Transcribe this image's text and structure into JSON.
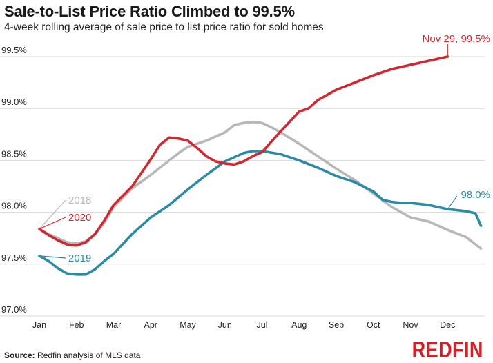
{
  "header": {
    "title": "Sale-to-List Price Ratio Climbed to 99.5%",
    "subtitle": "4-week rolling average of sale price to list price ratio for sold homes"
  },
  "footer": {
    "source_label": "Source:",
    "source_text": "Redfin analysis of MLS data",
    "brand": "REDFIN"
  },
  "colors": {
    "2018": "#b8b8b8",
    "2019": "#2a8aa8",
    "2020": "#d12830",
    "grid": "#d9d9d9",
    "text": "#1a1a1a"
  },
  "chart_data": {
    "type": "line",
    "title": "Sale-to-List Price Ratio Climbed to 99.5%",
    "subtitle": "4-week rolling average of sale price to list price ratio for sold homes",
    "xlabel": "",
    "ylabel": "",
    "x_unit": "month",
    "x_ticks": [
      "Jan",
      "Feb",
      "Mar",
      "Apr",
      "May",
      "Jun",
      "Jul",
      "Aug",
      "Sep",
      "Oct",
      "Nov",
      "Dec"
    ],
    "y_ticks": [
      "97.0%",
      "97.5%",
      "98.0%",
      "98.5%",
      "99.0%",
      "99.5%"
    ],
    "y_tick_values": [
      97.0,
      97.5,
      98.0,
      98.5,
      99.0,
      99.5
    ],
    "ylim": [
      97.0,
      99.5
    ],
    "grid": true,
    "series": [
      {
        "name": "2018",
        "color": "#b8b8b8",
        "x": [
          0.0,
          0.25,
          0.5,
          0.75,
          1.0,
          1.25,
          1.5,
          1.75,
          2.0,
          2.5,
          3.0,
          3.25,
          3.5,
          3.75,
          4.0,
          4.5,
          5.0,
          5.25,
          5.5,
          5.75,
          6.0,
          6.25,
          6.5,
          7.0,
          7.5,
          8.0,
          8.5,
          9.0,
          9.5,
          10.0,
          10.5,
          11.0,
          11.5,
          11.9
        ],
        "values": [
          97.84,
          97.79,
          97.75,
          97.71,
          97.7,
          97.72,
          97.79,
          97.9,
          98.05,
          98.23,
          98.36,
          98.43,
          98.5,
          98.57,
          98.63,
          98.69,
          98.77,
          98.84,
          98.86,
          98.87,
          98.86,
          98.82,
          98.77,
          98.66,
          98.54,
          98.42,
          98.31,
          98.18,
          98.05,
          97.95,
          97.91,
          97.83,
          97.76,
          97.65
        ]
      },
      {
        "name": "2019",
        "color": "#2a8aa8",
        "x": [
          0.0,
          0.25,
          0.5,
          0.75,
          1.0,
          1.25,
          1.5,
          1.75,
          2.0,
          2.5,
          3.0,
          3.5,
          4.0,
          4.5,
          5.0,
          5.5,
          5.75,
          6.0,
          6.5,
          7.0,
          7.5,
          8.0,
          8.5,
          9.0,
          9.25,
          9.5,
          9.75,
          10.0,
          10.25,
          10.5,
          10.75,
          11.0,
          11.25,
          11.5,
          11.75,
          11.9
        ],
        "values": [
          97.58,
          97.53,
          97.46,
          97.41,
          97.4,
          97.4,
          97.45,
          97.53,
          97.6,
          97.79,
          97.95,
          98.07,
          98.22,
          98.36,
          98.49,
          98.57,
          98.59,
          98.59,
          98.56,
          98.5,
          98.43,
          98.35,
          98.29,
          98.2,
          98.12,
          98.1,
          98.09,
          98.09,
          98.08,
          98.07,
          98.05,
          98.03,
          98.02,
          98.01,
          97.99,
          97.87
        ]
      },
      {
        "name": "2020",
        "color": "#d12830",
        "x": [
          0.0,
          0.25,
          0.5,
          0.75,
          1.0,
          1.25,
          1.5,
          1.75,
          2.0,
          2.5,
          3.0,
          3.25,
          3.5,
          3.75,
          4.0,
          4.25,
          4.5,
          4.75,
          5.0,
          5.25,
          5.5,
          5.75,
          6.0,
          6.5,
          7.0,
          7.25,
          7.5,
          8.0,
          8.5,
          9.0,
          9.5,
          10.0,
          10.5,
          11.0
        ],
        "values": [
          97.84,
          97.78,
          97.73,
          97.69,
          97.68,
          97.71,
          97.79,
          97.92,
          98.07,
          98.25,
          98.51,
          98.65,
          98.72,
          98.71,
          98.69,
          98.62,
          98.54,
          98.49,
          98.47,
          98.46,
          98.49,
          98.54,
          98.58,
          98.78,
          98.97,
          99.0,
          99.08,
          99.18,
          99.25,
          99.32,
          99.38,
          99.42,
          99.46,
          99.5
        ]
      }
    ],
    "annotations": [
      {
        "series": "2018",
        "text": "2018"
      },
      {
        "series": "2020",
        "text": "2020"
      },
      {
        "series": "2019",
        "text": "2019"
      },
      {
        "series": "2020",
        "text": "Nov 29, 99.5%"
      },
      {
        "series": "2019",
        "text": "98.0%"
      }
    ]
  }
}
